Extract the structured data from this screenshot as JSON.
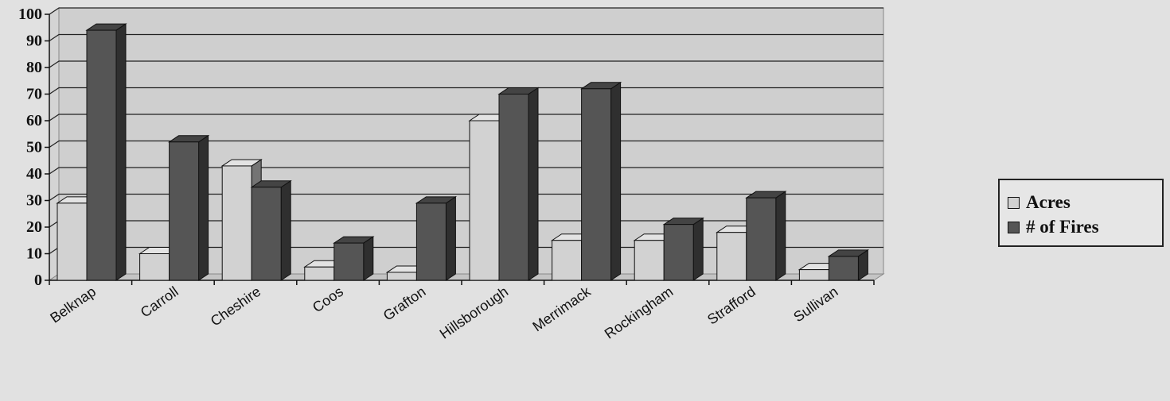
{
  "chart_data": {
    "type": "bar",
    "title": "",
    "xlabel": "",
    "ylabel": "",
    "categories": [
      "Belknap",
      "Carroll",
      "Cheshire",
      "Coos",
      "Grafton",
      "Hillsborough",
      "Merrimack",
      "Rockingham",
      "Strafford",
      "Sullivan"
    ],
    "series": [
      {
        "name": "Acres",
        "values": [
          29,
          10,
          43,
          5,
          3,
          60,
          15,
          15,
          18,
          4
        ],
        "color": "#d2d2d2"
      },
      {
        "name": "# of Fires",
        "values": [
          94,
          52,
          35,
          14,
          29,
          70,
          72,
          21,
          31,
          9
        ],
        "color": "#555555"
      }
    ],
    "yticks": [
      0,
      10,
      20,
      30,
      40,
      50,
      60,
      70,
      80,
      90,
      100
    ],
    "ylim": [
      0,
      100
    ],
    "grid": true,
    "legend_position": "right",
    "bar_style": "3d"
  }
}
